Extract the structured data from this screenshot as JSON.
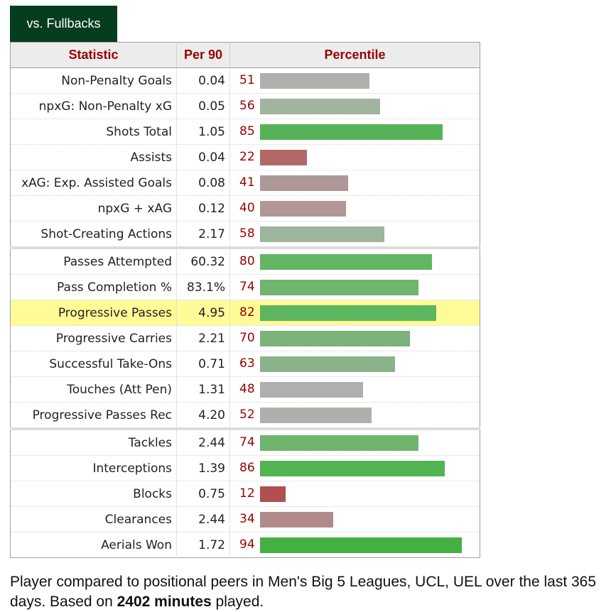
{
  "tab_label": "vs. Fullbacks",
  "headers": {
    "statistic": "Statistic",
    "per90": "Per 90",
    "percentile": "Percentile"
  },
  "rows": [
    {
      "stat": "Non-Penalty Goals",
      "per90": "0.04",
      "pct": 51,
      "color": "#b0b1ad"
    },
    {
      "stat": "npxG: Non-Penalty xG",
      "per90": "0.05",
      "pct": 56,
      "color": "#a0b4a0"
    },
    {
      "stat": "Shots Total",
      "per90": "1.05",
      "pct": 85,
      "color": "#56b256"
    },
    {
      "stat": "Assists",
      "per90": "0.04",
      "pct": 22,
      "color": "#b06868"
    },
    {
      "stat": "xAG: Exp. Assisted Goals",
      "per90": "0.08",
      "pct": 41,
      "color": "#af9898"
    },
    {
      "stat": "npxG + xAG",
      "per90": "0.12",
      "pct": 40,
      "color": "#b09696"
    },
    {
      "stat": "Shot-Creating Actions",
      "per90": "2.17",
      "pct": 58,
      "color": "#9db49d"
    },
    {
      "stat": "Passes Attempted",
      "per90": "60.32",
      "pct": 80,
      "color": "#63b463",
      "sep": true
    },
    {
      "stat": "Pass Completion %",
      "per90": "83.1%",
      "pct": 74,
      "color": "#6fb46f"
    },
    {
      "stat": "Progressive Passes",
      "per90": "4.95",
      "pct": 82,
      "color": "#5db65d",
      "hl": true
    },
    {
      "stat": "Progressive Carries",
      "per90": "2.21",
      "pct": 70,
      "color": "#7ab27a"
    },
    {
      "stat": "Successful Take-Ons",
      "per90": "0.71",
      "pct": 63,
      "color": "#8bb28b"
    },
    {
      "stat": "Touches (Att Pen)",
      "per90": "1.31",
      "pct": 48,
      "color": "#afafaf"
    },
    {
      "stat": "Progressive Passes Rec",
      "per90": "4.20",
      "pct": 52,
      "color": "#aeb0ac"
    },
    {
      "stat": "Tackles",
      "per90": "2.44",
      "pct": 74,
      "color": "#6fb46f",
      "sep": true
    },
    {
      "stat": "Interceptions",
      "per90": "1.39",
      "pct": 86,
      "color": "#52b452"
    },
    {
      "stat": "Blocks",
      "per90": "0.75",
      "pct": 12,
      "color": "#b05050"
    },
    {
      "stat": "Clearances",
      "per90": "2.44",
      "pct": 34,
      "color": "#b08a8a"
    },
    {
      "stat": "Aerials Won",
      "per90": "1.72",
      "pct": 94,
      "color": "#44b044"
    }
  ],
  "footer": {
    "prefix": "Player compared to positional peers in Men's Big 5 Leagues, UCL, UEL over the last 365 days. Based on ",
    "minutes": "2402 minutes",
    "suffix": " played."
  }
}
